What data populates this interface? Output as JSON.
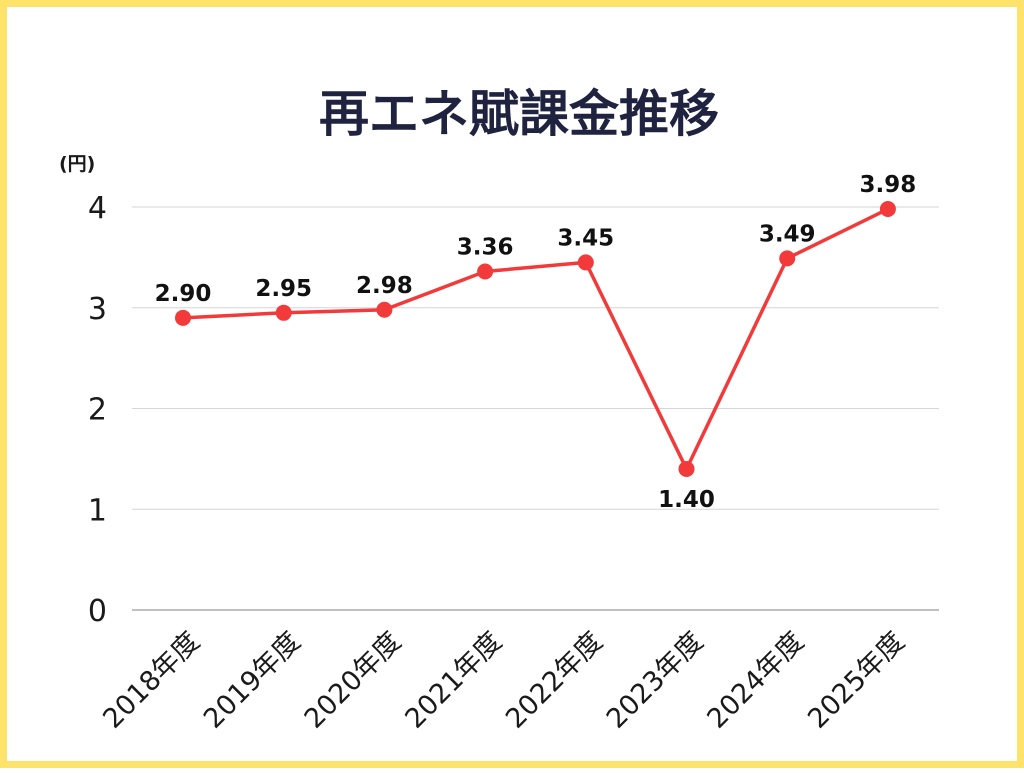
{
  "chart_data": {
    "type": "line",
    "title": "再エネ賦課金推移",
    "ylabel": "(円)",
    "xlabel": "",
    "categories": [
      "2018年度",
      "2019年度",
      "2020年度",
      "2021年度",
      "2022年度",
      "2023年度",
      "2024年度",
      "2025年度"
    ],
    "values": [
      2.9,
      2.95,
      2.98,
      3.36,
      3.45,
      1.4,
      3.49,
      3.98
    ],
    "data_labels": [
      "2.90",
      "2.95",
      "2.98",
      "3.36",
      "3.45",
      "1.40",
      "3.49",
      "3.98"
    ],
    "yticks": [
      "0",
      "1",
      "2",
      "3",
      "4"
    ],
    "ylim": [
      0,
      4
    ],
    "grid": true,
    "legend": "none",
    "colors": {
      "line": "#f23a3a",
      "border": "#fde36a",
      "title": "#1f2340"
    }
  }
}
